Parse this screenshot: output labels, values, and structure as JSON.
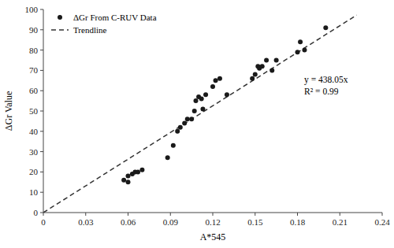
{
  "chart_data": {
    "type": "scatter",
    "x_label": "A*545",
    "y_label": "ΔGr Value",
    "xlim": [
      0,
      0.24
    ],
    "ylim": [
      0,
      100
    ],
    "xticks": [
      0,
      0.03,
      0.06,
      0.09,
      0.12,
      0.15,
      0.18,
      0.21,
      0.24
    ],
    "yticks": [
      0,
      10,
      20,
      30,
      40,
      50,
      60,
      70,
      80,
      90,
      100
    ],
    "grid": false,
    "legend": "upper left",
    "annotations": [
      "y = 438.05x",
      "R² = 0.99"
    ],
    "series": [
      {
        "name": "ΔGr From C-RUV Data",
        "type": "scatter",
        "marker": "circle",
        "color": "#1a1a1a",
        "x": [
          0.057,
          0.06,
          0.06,
          0.063,
          0.065,
          0.067,
          0.07,
          0.088,
          0.092,
          0.095,
          0.097,
          0.1,
          0.102,
          0.105,
          0.107,
          0.108,
          0.11,
          0.112,
          0.113,
          0.115,
          0.12,
          0.122,
          0.125,
          0.13,
          0.148,
          0.15,
          0.152,
          0.153,
          0.155,
          0.158,
          0.162,
          0.165,
          0.18,
          0.182,
          0.185,
          0.2
        ],
        "values": [
          16,
          18,
          15,
          19,
          20,
          20,
          21,
          27,
          33,
          40,
          42,
          44,
          46,
          46,
          50,
          55,
          57,
          56,
          51,
          58,
          62,
          65,
          66,
          58,
          66,
          68,
          72,
          71,
          72,
          75,
          70,
          75,
          79,
          84,
          80,
          91
        ]
      },
      {
        "name": "Trendline",
        "type": "line",
        "line_style": "dashed",
        "color": "#333333",
        "x": [
          0.0,
          0.222
        ],
        "values": [
          0,
          97.2471
        ]
      }
    ]
  }
}
